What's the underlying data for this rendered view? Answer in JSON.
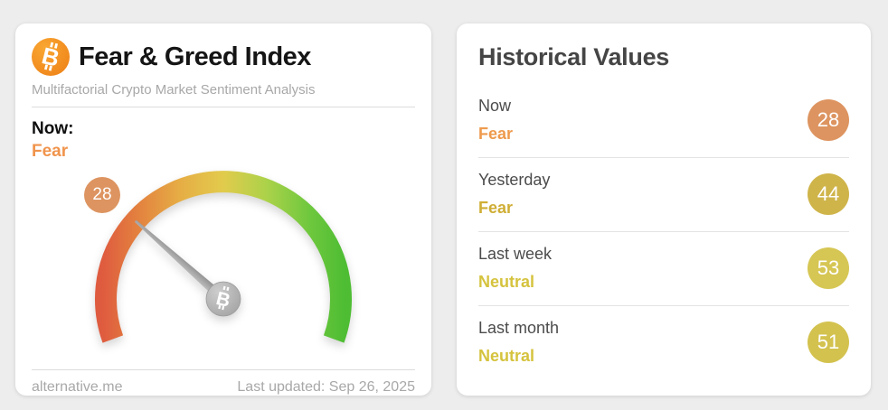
{
  "page": {
    "background": "#ededed"
  },
  "gauge": {
    "min": 0,
    "max": 100,
    "value": 28,
    "badge": "28",
    "badge_color": "#dd9460",
    "needle_color": "#a6a6a6",
    "arc_colors": [
      "#df5b3f",
      "#e3823f",
      "#e6ad45",
      "#e2cb4c",
      "#abd24a",
      "#70c83e",
      "#4ebd33"
    ]
  },
  "left_card": {
    "title": "Fear & Greed Index",
    "subtitle": "Multifactorial Crypto Market Sentiment Analysis",
    "now_label": "Now:",
    "now_classification": "Fear",
    "now_classification_color": "#f0944c",
    "footer_site": "alternative.me",
    "footer_updated": "Last updated: Sep 26, 2025"
  },
  "right_card": {
    "title": "Historical Values",
    "rows": [
      {
        "label": "Now",
        "classification": "Fear",
        "value": "28",
        "classification_color": "#ee9a4d",
        "badge_color": "#dd9460"
      },
      {
        "label": "Yesterday",
        "classification": "Fear",
        "value": "44",
        "classification_color": "#cfae35",
        "badge_color": "#cfb44a"
      },
      {
        "label": "Last week",
        "classification": "Neutral",
        "value": "53",
        "classification_color": "#d5c33e",
        "badge_color": "#d6c654"
      },
      {
        "label": "Last month",
        "classification": "Neutral",
        "value": "51",
        "classification_color": "#d5c33e",
        "badge_color": "#d3c24e"
      }
    ]
  },
  "chart_data": {
    "type": "gauge",
    "title": "Fear & Greed Index",
    "value": 28,
    "range": [
      0,
      100
    ],
    "classification": "Fear",
    "historical": [
      {
        "period": "Now",
        "value": 28,
        "classification": "Fear"
      },
      {
        "period": "Yesterday",
        "value": 44,
        "classification": "Fear"
      },
      {
        "period": "Last week",
        "value": 53,
        "classification": "Neutral"
      },
      {
        "period": "Last month",
        "value": 51,
        "classification": "Neutral"
      }
    ]
  }
}
